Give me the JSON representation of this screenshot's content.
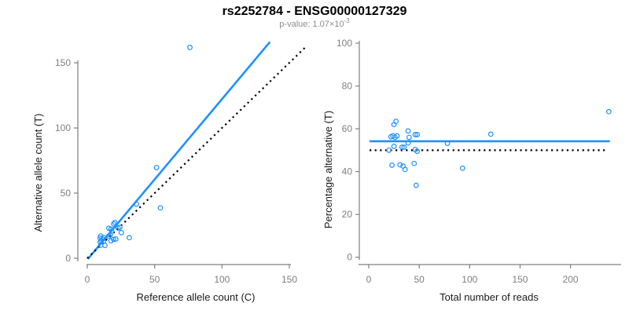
{
  "title": "rs2252784 - ENSG00000127329",
  "subtitle": {
    "text": "p-value: 1.07×10",
    "exponent": "-3"
  },
  "colors": {
    "accent_blue": "#1E90FF",
    "axis_gray": "#7f7f7f",
    "subtitle_gray": "#8c8c8c",
    "text_black": "#000000"
  },
  "chart_data": [
    {
      "type": "scatter",
      "name": "alternative-vs-reference-allele-count",
      "xlabel": "Reference allele count (C)",
      "ylabel": "Alternative allele count (T)",
      "x_ticks": [
        0,
        50,
        100,
        150
      ],
      "y_ticks": [
        0,
        50,
        100,
        150
      ],
      "xlim": [
        -7,
        152
      ],
      "ylim": [
        -8,
        168
      ],
      "grid": false,
      "legend": "none",
      "points": [
        [
          9.9,
          17.1
        ],
        [
          9.5,
          15.5
        ],
        [
          10.4,
          13.6
        ],
        [
          11.4,
          14.6
        ],
        [
          12.1,
          15.9
        ],
        [
          9.6,
          12.4
        ],
        [
          16,
          23
        ],
        [
          19.6,
          26.4
        ],
        [
          20.5,
          27.5
        ],
        [
          17.6,
          22.4
        ],
        [
          18.2,
          20.8
        ],
        [
          12.1,
          12.9
        ],
        [
          16,
          17
        ],
        [
          17,
          18
        ],
        [
          10,
          10
        ],
        [
          22.9,
          23.1
        ],
        [
          24.2,
          23.8
        ],
        [
          36.5,
          41.5
        ],
        [
          13.1,
          9.9
        ],
        [
          17.6,
          13.4
        ],
        [
          19.5,
          14.5
        ],
        [
          21.2,
          14.8
        ],
        [
          25.3,
          19.7
        ],
        [
          31.2,
          15.8
        ],
        [
          54.3,
          38.7
        ],
        [
          51.4,
          69.6
        ],
        [
          76.2,
          161.8
        ]
      ],
      "lines": [
        {
          "style": "solid",
          "color": "#1E90FF",
          "x1": 0.4,
          "y1": -0.6,
          "x2": 135.6,
          "y2": 166
        },
        {
          "style": "dotted",
          "color": "#000000",
          "x1": 0,
          "y1": 0,
          "x2": 162,
          "y2": 162
        }
      ]
    },
    {
      "type": "scatter",
      "name": "percentage-alternative-vs-total-reads",
      "xlabel": "Total number of reads",
      "ylabel": "Percentage alternative (T)",
      "x_ticks": [
        0,
        50,
        100,
        150,
        200
      ],
      "y_ticks": [
        0,
        20,
        40,
        60,
        80,
        100
      ],
      "xlim": [
        -10,
        250
      ],
      "ylim": [
        0,
        100
      ],
      "grid": false,
      "legend": "none",
      "points": [
        [
          27,
          63.5
        ],
        [
          25,
          62
        ],
        [
          24,
          56.7
        ],
        [
          26,
          56
        ],
        [
          28,
          56.7
        ],
        [
          22,
          56.3
        ],
        [
          39,
          59
        ],
        [
          46,
          57.3
        ],
        [
          48,
          57.3
        ],
        [
          40,
          56
        ],
        [
          39,
          53.4
        ],
        [
          25,
          51.8
        ],
        [
          33,
          51.4
        ],
        [
          35,
          51.4
        ],
        [
          20,
          50
        ],
        [
          46,
          50.3
        ],
        [
          48,
          49.5
        ],
        [
          78,
          53.2
        ],
        [
          23,
          43
        ],
        [
          31,
          43.2
        ],
        [
          34,
          42.6
        ],
        [
          36,
          41
        ],
        [
          45,
          43.8
        ],
        [
          47,
          33.6
        ],
        [
          93,
          41.6
        ],
        [
          121,
          57.5
        ],
        [
          238,
          68
        ]
      ],
      "lines": [
        {
          "style": "solid",
          "color": "#1E90FF",
          "x1": 0.8,
          "y1": 54.2,
          "x2": 239,
          "y2": 54.2
        },
        {
          "style": "dotted",
          "color": "#000000",
          "x1": 0.8,
          "y1": 50,
          "x2": 236,
          "y2": 50
        }
      ]
    }
  ]
}
